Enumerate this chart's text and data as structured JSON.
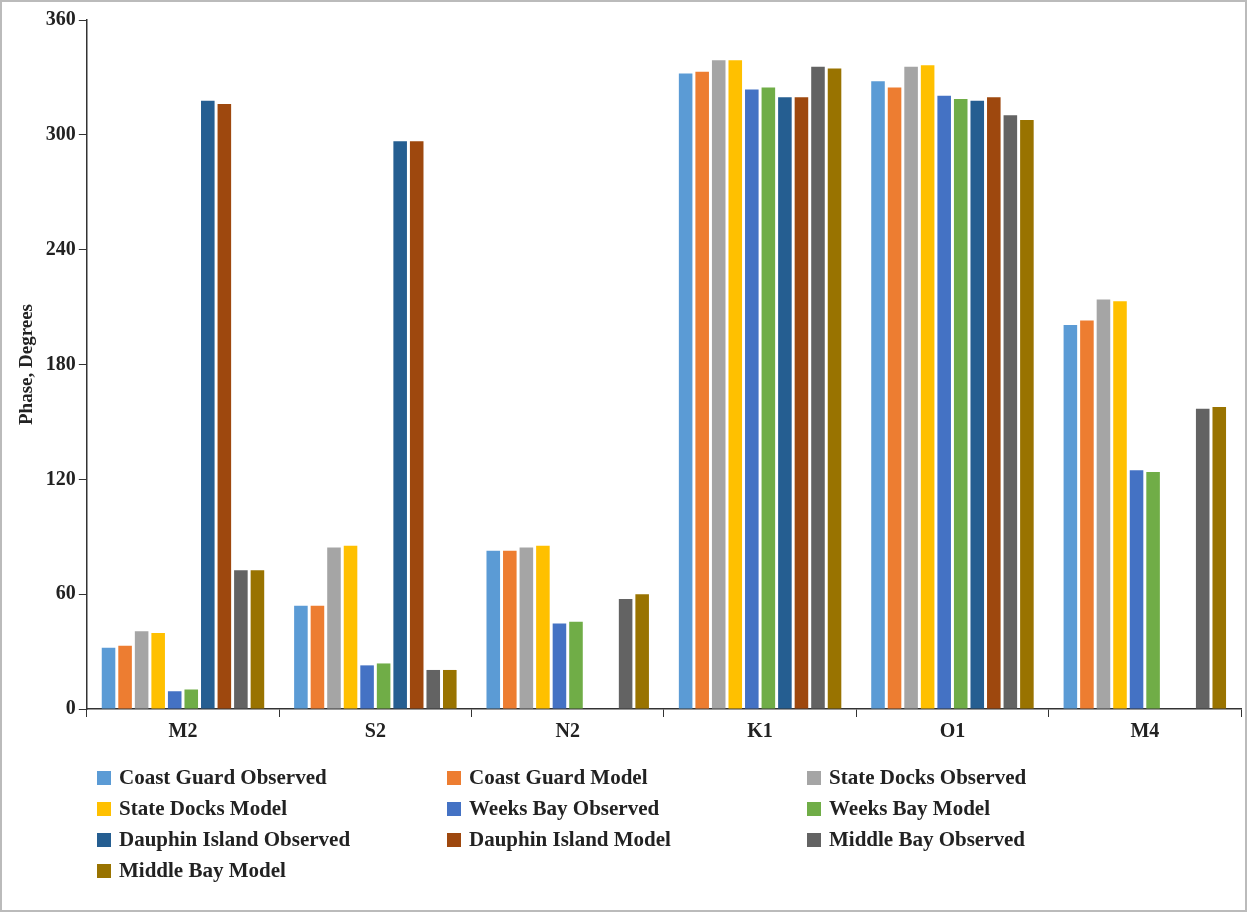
{
  "chart_data": {
    "type": "bar",
    "ylabel": "Phase, Degrees",
    "categories": [
      "M2",
      "S2",
      "N2",
      "K1",
      "O1",
      "M4"
    ],
    "ylim": [
      0,
      360
    ],
    "yticks": [
      0,
      60,
      120,
      180,
      240,
      300,
      360
    ],
    "grid": false,
    "legend": "bottom",
    "series": [
      {
        "name": "Coast Guard Observed",
        "color": "#5b9bd5",
        "values": [
          32,
          54,
          82.7,
          332,
          328,
          200.6
        ]
      },
      {
        "name": "Coast Guard Model",
        "color": "#ed7d31",
        "values": [
          33,
          54,
          82.7,
          333,
          324.7,
          203
        ]
      },
      {
        "name": "State Docks Observed",
        "color": "#a5a5a5",
        "values": [
          40.6,
          84.4,
          84.4,
          339,
          335.6,
          214
        ]
      },
      {
        "name": "State Docks Model",
        "color": "#ffc000",
        "values": [
          39.7,
          85.3,
          85.3,
          339,
          336.3,
          213
        ]
      },
      {
        "name": "Weeks Bay Observed",
        "color": "#4472c4",
        "values": [
          9.3,
          22.8,
          44.7,
          323.7,
          320.4,
          124.8
        ]
      },
      {
        "name": "Weeks Bay Model",
        "color": "#70ad47",
        "values": [
          10.2,
          23.8,
          45.6,
          324.7,
          318.7,
          123.8
        ]
      },
      {
        "name": "Dauphin Island Observed",
        "color": "#255e91",
        "values": [
          317.8,
          296.6,
          null,
          319.7,
          317.8,
          null
        ]
      },
      {
        "name": "Dauphin Island Model",
        "color": "#9e480e",
        "values": [
          316.1,
          296.6,
          null,
          319.7,
          319.7,
          null
        ]
      },
      {
        "name": "Middle Bay Observed",
        "color": "#636363",
        "values": [
          72.5,
          20.4,
          57.5,
          335.6,
          310.2,
          156.9
        ]
      },
      {
        "name": "Middle Bay Model",
        "color": "#997300",
        "values": [
          72.5,
          20.4,
          59.9,
          334.7,
          307.8,
          157.8
        ]
      }
    ]
  }
}
